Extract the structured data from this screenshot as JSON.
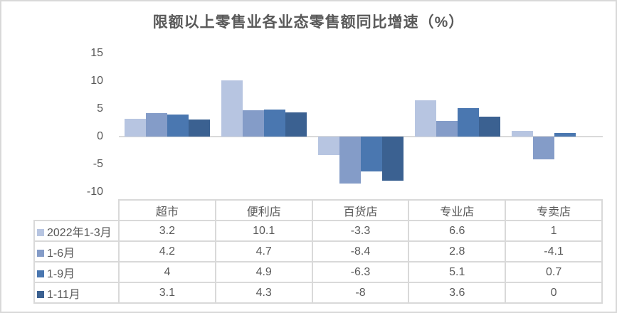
{
  "chart_data": {
    "type": "bar",
    "title": "限额以上零售业各业态零售额同比增速（%）",
    "categories": [
      "超市",
      "便利店",
      "百货店",
      "专业店",
      "专卖店"
    ],
    "series": [
      {
        "name": "2022年1-3月",
        "color": "#B7C5E1",
        "values": [
          3.2,
          10.1,
          -3.3,
          6.6,
          1
        ]
      },
      {
        "name": "1-6月",
        "color": "#849CC8",
        "values": [
          4.2,
          4.7,
          -8.4,
          2.8,
          -4.1
        ]
      },
      {
        "name": "1-9月",
        "color": "#4A77B0",
        "values": [
          4,
          4.9,
          -6.3,
          5.1,
          0.7
        ]
      },
      {
        "name": "1-11月",
        "color": "#3B6191",
        "values": [
          3.1,
          4.3,
          -8,
          3.6,
          0
        ]
      }
    ],
    "y_ticks": [
      15,
      10,
      5,
      0,
      -5,
      -10
    ],
    "ylim": [
      -10,
      15
    ],
    "xlabel": "",
    "ylabel": "",
    "grid": false,
    "legend_position": "table-left-column"
  },
  "table": {
    "header": [
      "超市",
      "便利店",
      "百货店",
      "专业店",
      "专卖店"
    ],
    "rows": [
      {
        "label": "2022年1-3月",
        "swatch": "#B7C5E1",
        "cells": [
          "3.2",
          "10.1",
          "-3.3",
          "6.6",
          "1"
        ]
      },
      {
        "label": "1-6月",
        "swatch": "#849CC8",
        "cells": [
          "4.2",
          "4.7",
          "-8.4",
          "2.8",
          "-4.1"
        ]
      },
      {
        "label": "1-9月",
        "swatch": "#4A77B0",
        "cells": [
          "4",
          "4.9",
          "-6.3",
          "5.1",
          "0.7"
        ]
      },
      {
        "label": "1-11月",
        "swatch": "#3B6191",
        "cells": [
          "3.1",
          "4.3",
          "-8",
          "3.6",
          "0"
        ]
      }
    ]
  },
  "colors": {
    "text": "#595959",
    "axis": "#D9D9D9",
    "table_border": "#D9D9D9",
    "frame_border": "#D9D9D9",
    "background": "#FFFFFF"
  }
}
